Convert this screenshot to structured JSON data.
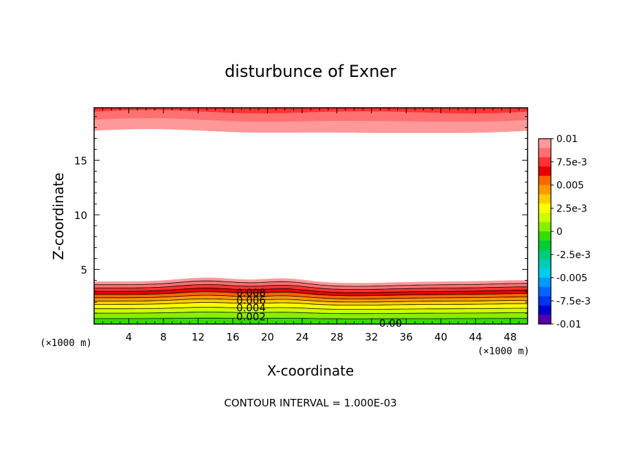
{
  "chart_data": {
    "type": "filled-contour",
    "title": "disturbunce of Exner",
    "xlabel": "X-coordinate",
    "ylabel": "Z-coordinate",
    "x_unit_left": "(×1000 m)",
    "x_unit_right": "(×1000 m)",
    "footer": "CONTOUR INTERVAL = 1.000E-03",
    "xlim": [
      0,
      50
    ],
    "ylim": [
      0,
      19.8
    ],
    "x_ticks": [
      4,
      8,
      12,
      16,
      20,
      24,
      28,
      32,
      36,
      40,
      44,
      48
    ],
    "x_tick_labels": [
      "4",
      "8",
      "12",
      "16",
      "20",
      "24",
      "28",
      "32",
      "36",
      "40",
      "44",
      "48"
    ],
    "y_ticks": [
      5,
      10,
      15
    ],
    "y_tick_labels": [
      "5",
      "10",
      "15"
    ],
    "colorbar": {
      "range": [
        -0.01,
        0.01
      ],
      "tick_labels": [
        "0.01",
        "7.5e-3",
        "0.005",
        "2.5e-3",
        "0",
        "-2.5e-3",
        "-0.005",
        "-7.5e-3",
        "-0.01"
      ],
      "colors": [
        "#ff9999",
        "#ff7070",
        "#ff3333",
        "#e80000",
        "#ff6600",
        "#ff9900",
        "#ffcc00",
        "#ffff00",
        "#ccff00",
        "#88ee00",
        "#33dd00",
        "#00cc33",
        "#00cc77",
        "#00ccbb",
        "#00ccee",
        "#0099ff",
        "#0066ff",
        "#0033ee",
        "#0000cc",
        "#5500aa"
      ]
    },
    "contour_labels": [
      {
        "text": "0.008",
        "x": 18.1,
        "z": 2.8
      },
      {
        "text": "0.006",
        "x": 18.1,
        "z": 2.1
      },
      {
        "text": "0.004",
        "x": 18.1,
        "z": 1.4
      },
      {
        "text": "0.002",
        "x": 18.1,
        "z": 0.6
      },
      {
        "text": "0.00",
        "x": 34.2,
        "z": 0.0
      }
    ],
    "bands": [
      {
        "level": 0.0,
        "color": "#33dd00"
      },
      {
        "level": 0.5,
        "color": "#88ee00"
      },
      {
        "level": 1.0,
        "color": "#ccff00"
      },
      {
        "level": 1.4,
        "color": "#ffff00"
      },
      {
        "level": 1.8,
        "color": "#ffcc00"
      },
      {
        "level": 2.1,
        "color": "#ff9900"
      },
      {
        "level": 2.4,
        "color": "#ff6600"
      },
      {
        "level": 2.7,
        "color": "#e80000"
      },
      {
        "level": 3.0,
        "color": "#ff3333"
      },
      {
        "level": 3.3,
        "color": "#ff7070"
      },
      {
        "level": 3.6,
        "color": "#ff9999"
      }
    ],
    "upper_layer": {
      "bottom": 17.7,
      "mid": 18.7,
      "top": 19.8,
      "colors": [
        "#ff9999",
        "#ff7070",
        "#ff3333"
      ]
    }
  }
}
